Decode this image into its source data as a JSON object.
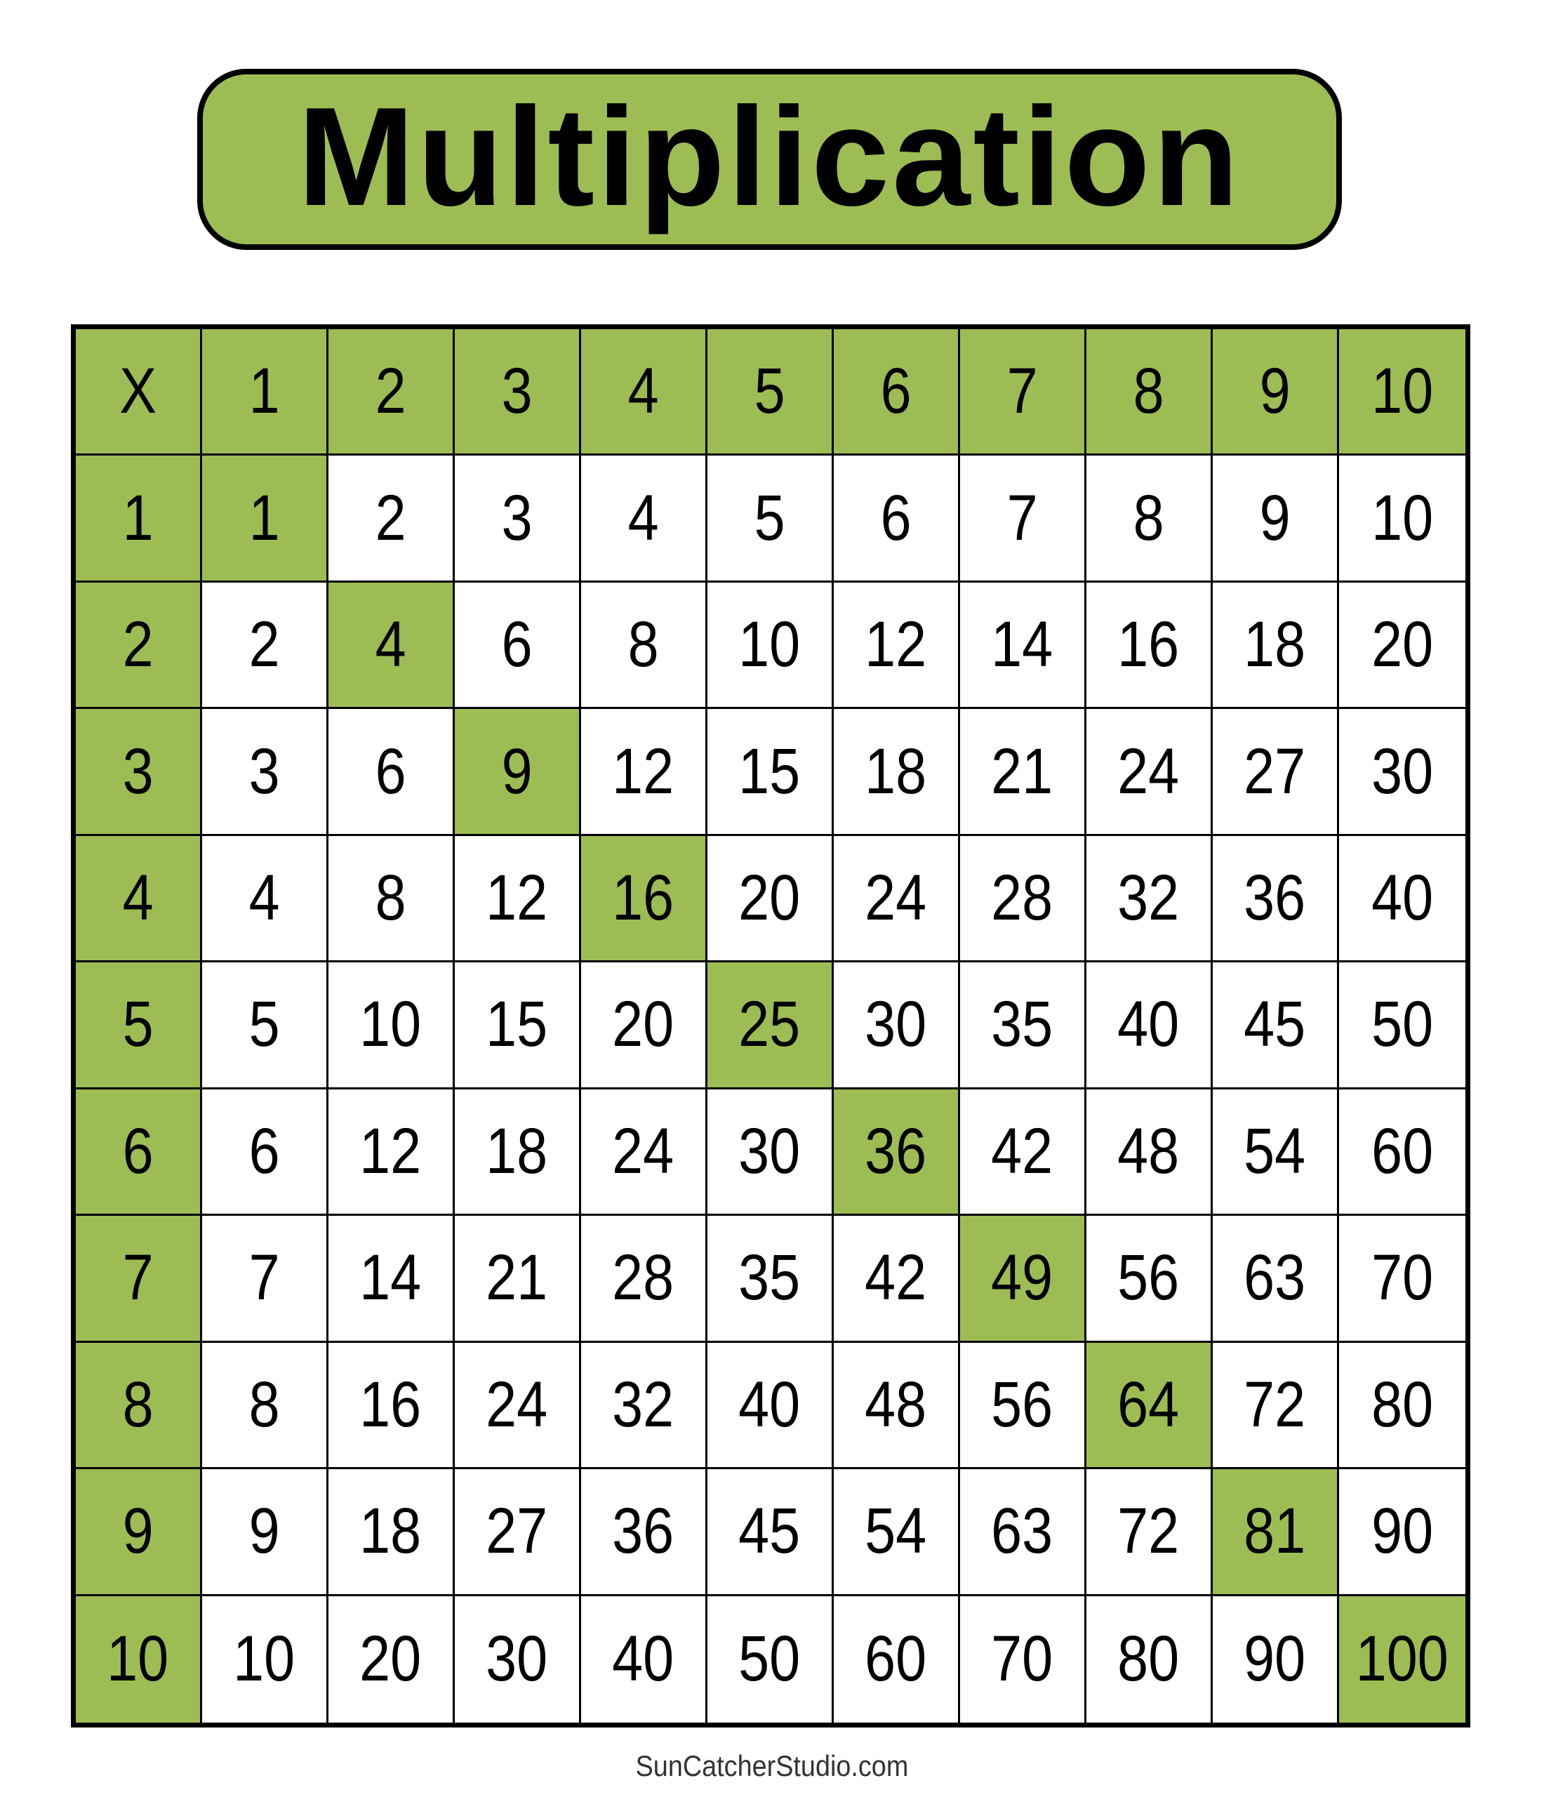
{
  "title": "Multiplication",
  "corner_label": "X",
  "header": [
    "1",
    "2",
    "3",
    "4",
    "5",
    "6",
    "7",
    "8",
    "9",
    "10"
  ],
  "rows": [
    {
      "label": "1",
      "cells": [
        "1",
        "2",
        "3",
        "4",
        "5",
        "6",
        "7",
        "8",
        "9",
        "10"
      ]
    },
    {
      "label": "2",
      "cells": [
        "2",
        "4",
        "6",
        "8",
        "10",
        "12",
        "14",
        "16",
        "18",
        "20"
      ]
    },
    {
      "label": "3",
      "cells": [
        "3",
        "6",
        "9",
        "12",
        "15",
        "18",
        "21",
        "24",
        "27",
        "30"
      ]
    },
    {
      "label": "4",
      "cells": [
        "4",
        "8",
        "12",
        "16",
        "20",
        "24",
        "28",
        "32",
        "36",
        "40"
      ]
    },
    {
      "label": "5",
      "cells": [
        "5",
        "10",
        "15",
        "20",
        "25",
        "30",
        "35",
        "40",
        "45",
        "50"
      ]
    },
    {
      "label": "6",
      "cells": [
        "6",
        "12",
        "18",
        "24",
        "30",
        "36",
        "42",
        "48",
        "54",
        "60"
      ]
    },
    {
      "label": "7",
      "cells": [
        "7",
        "14",
        "21",
        "28",
        "35",
        "42",
        "49",
        "56",
        "63",
        "70"
      ]
    },
    {
      "label": "8",
      "cells": [
        "8",
        "16",
        "24",
        "32",
        "40",
        "48",
        "56",
        "64",
        "72",
        "80"
      ]
    },
    {
      "label": "9",
      "cells": [
        "9",
        "18",
        "27",
        "36",
        "45",
        "54",
        "63",
        "72",
        "81",
        "90"
      ]
    },
    {
      "label": "10",
      "cells": [
        "10",
        "20",
        "30",
        "40",
        "50",
        "60",
        "70",
        "80",
        "90",
        "100"
      ]
    }
  ],
  "highlight": "diagonal squares",
  "colors": {
    "accent": "#9dbd54",
    "border": "#000000",
    "footer_text": "#333333"
  },
  "footer": "SunCatcherStudio.com"
}
